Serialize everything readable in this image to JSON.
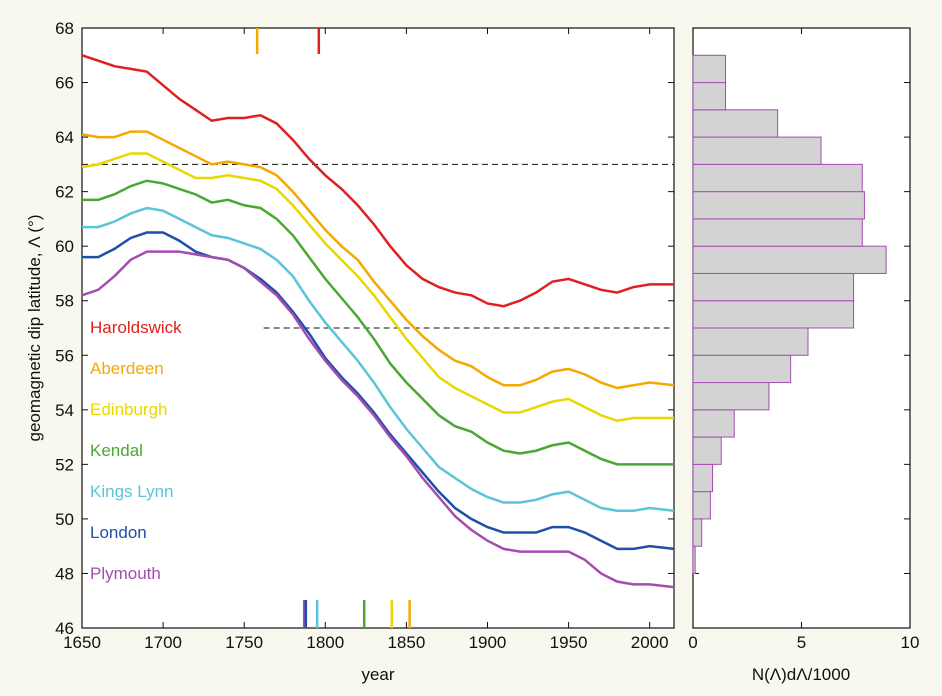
{
  "chart_data": [
    {
      "type": "line",
      "xlabel": "year",
      "ylabel": "geomagnetic dip latitude, Λ (°)",
      "xlim": [
        1650,
        2015
      ],
      "ylim": [
        46,
        68
      ],
      "xticks": [
        1650,
        1700,
        1750,
        1800,
        1850,
        1900,
        1950,
        2000
      ],
      "yticks": [
        46,
        48,
        50,
        52,
        54,
        56,
        58,
        60,
        62,
        64,
        66,
        68
      ],
      "x": [
        1650,
        1660,
        1670,
        1680,
        1690,
        1700,
        1710,
        1720,
        1730,
        1740,
        1750,
        1760,
        1770,
        1780,
        1790,
        1800,
        1810,
        1820,
        1830,
        1840,
        1850,
        1860,
        1870,
        1880,
        1890,
        1900,
        1910,
        1920,
        1930,
        1940,
        1950,
        1960,
        1970,
        1980,
        1990,
        2000,
        2015
      ],
      "series": [
        {
          "name": "Haroldswick",
          "color": "#e02020",
          "values": [
            67.0,
            66.8,
            66.6,
            66.5,
            66.4,
            65.9,
            65.4,
            65.0,
            64.6,
            64.7,
            64.7,
            64.8,
            64.5,
            63.9,
            63.2,
            62.6,
            62.1,
            61.5,
            60.8,
            60.0,
            59.3,
            58.8,
            58.5,
            58.3,
            58.2,
            57.9,
            57.8,
            58.0,
            58.3,
            58.7,
            58.8,
            58.6,
            58.4,
            58.3,
            58.5,
            58.6,
            58.6
          ]
        },
        {
          "name": "Aberdeen",
          "color": "#f5a800",
          "values": [
            64.1,
            64.0,
            64.0,
            64.2,
            64.2,
            63.9,
            63.6,
            63.3,
            63.0,
            63.1,
            63.0,
            62.9,
            62.6,
            62.0,
            61.3,
            60.6,
            60.0,
            59.5,
            58.7,
            58.0,
            57.3,
            56.7,
            56.2,
            55.8,
            55.6,
            55.2,
            54.9,
            54.9,
            55.1,
            55.4,
            55.5,
            55.3,
            55.0,
            54.8,
            54.9,
            55.0,
            54.9
          ]
        },
        {
          "name": "Edinburgh",
          "color": "#e8d800",
          "values": [
            62.9,
            63.0,
            63.2,
            63.4,
            63.4,
            63.1,
            62.8,
            62.5,
            62.5,
            62.6,
            62.5,
            62.4,
            62.1,
            61.5,
            60.8,
            60.1,
            59.5,
            58.9,
            58.2,
            57.4,
            56.6,
            55.9,
            55.2,
            54.8,
            54.5,
            54.2,
            53.9,
            53.9,
            54.1,
            54.3,
            54.4,
            54.1,
            53.8,
            53.6,
            53.7,
            53.7,
            53.7
          ]
        },
        {
          "name": "Kendal",
          "color": "#4aa832",
          "values": [
            61.7,
            61.7,
            61.9,
            62.2,
            62.4,
            62.3,
            62.1,
            61.9,
            61.6,
            61.7,
            61.5,
            61.4,
            61.0,
            60.4,
            59.6,
            58.8,
            58.1,
            57.4,
            56.6,
            55.7,
            55.0,
            54.4,
            53.8,
            53.4,
            53.2,
            52.8,
            52.5,
            52.4,
            52.5,
            52.7,
            52.8,
            52.5,
            52.2,
            52.0,
            52.0,
            52.0,
            52.0
          ]
        },
        {
          "name": "Kings Lynn",
          "color": "#5bc4d8",
          "values": [
            60.7,
            60.7,
            60.9,
            61.2,
            61.4,
            61.3,
            61.0,
            60.7,
            60.4,
            60.3,
            60.1,
            59.9,
            59.5,
            58.9,
            58.0,
            57.2,
            56.5,
            55.8,
            55.0,
            54.1,
            53.3,
            52.6,
            51.9,
            51.5,
            51.1,
            50.8,
            50.6,
            50.6,
            50.7,
            50.9,
            51.0,
            50.7,
            50.4,
            50.3,
            50.3,
            50.4,
            50.3
          ]
        },
        {
          "name": "London",
          "color": "#1f4fa8",
          "values": [
            59.6,
            59.6,
            59.9,
            60.3,
            60.5,
            60.5,
            60.2,
            59.8,
            59.6,
            59.5,
            59.2,
            58.8,
            58.3,
            57.6,
            56.8,
            55.9,
            55.2,
            54.6,
            53.9,
            53.1,
            52.4,
            51.7,
            51.0,
            50.4,
            50.0,
            49.7,
            49.5,
            49.5,
            49.5,
            49.7,
            49.7,
            49.5,
            49.2,
            48.9,
            48.9,
            49.0,
            48.9
          ]
        },
        {
          "name": "Plymouth",
          "color": "#a44cb0",
          "values": [
            58.2,
            58.4,
            58.9,
            59.5,
            59.8,
            59.8,
            59.8,
            59.7,
            59.6,
            59.5,
            59.2,
            58.7,
            58.2,
            57.5,
            56.6,
            55.8,
            55.1,
            54.5,
            53.8,
            53.0,
            52.3,
            51.5,
            50.8,
            50.1,
            49.6,
            49.2,
            48.9,
            48.8,
            48.8,
            48.8,
            48.8,
            48.5,
            48.0,
            47.7,
            47.6,
            47.6,
            47.5
          ]
        }
      ],
      "markers": [
        {
          "x": 1758,
          "color": "#f5a800",
          "side": "top"
        },
        {
          "x": 1796,
          "color": "#e02020",
          "side": "top"
        },
        {
          "x": 1787,
          "color": "#a44cb0",
          "side": "bottom"
        },
        {
          "x": 1788,
          "color": "#1f4fa8",
          "side": "bottom"
        },
        {
          "x": 1795,
          "color": "#5bc4d8",
          "side": "bottom"
        },
        {
          "x": 1824,
          "color": "#4aa832",
          "side": "bottom"
        },
        {
          "x": 1841,
          "color": "#e8d800",
          "side": "bottom"
        },
        {
          "x": 1852,
          "color": "#f5a800",
          "side": "bottom"
        }
      ],
      "hlines": [
        {
          "y": 63,
          "x": [
            1650,
            2015
          ]
        },
        {
          "y": 57,
          "x": [
            1762,
            2015
          ]
        }
      ]
    },
    {
      "type": "histogram",
      "orientation": "horizontal",
      "xlabel": "N(Λ)dΛ/1000",
      "xlim": [
        0,
        10
      ],
      "xticks": [
        0,
        5,
        10
      ],
      "ylim": [
        46,
        68
      ],
      "yticks": [
        46,
        48,
        50,
        52,
        54,
        56,
        58,
        60,
        62,
        64,
        66,
        68
      ],
      "color": "#d3d3d3",
      "edgecolor": "#a44cb0",
      "bins": [
        48,
        49,
        50,
        51,
        52,
        53,
        54,
        55,
        56,
        57,
        58,
        59,
        60,
        61,
        62,
        63,
        64,
        65,
        66,
        67
      ],
      "values": [
        0.1,
        0.4,
        0.8,
        0.9,
        1.3,
        1.9,
        3.5,
        4.5,
        5.3,
        7.4,
        7.4,
        8.9,
        7.8,
        7.9,
        7.8,
        5.9,
        3.9,
        1.5,
        1.5
      ]
    }
  ]
}
